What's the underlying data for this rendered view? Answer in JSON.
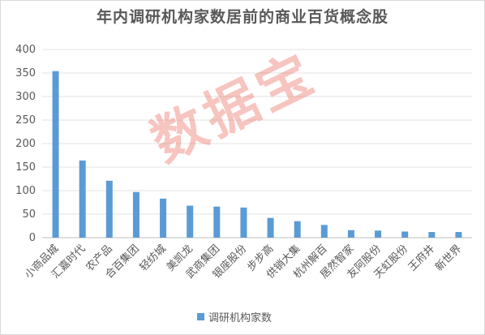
{
  "chart_data": {
    "type": "bar",
    "title": "年内调研机构家数居前的商业百货概念股",
    "categories": [
      "小商品城",
      "汇嘉时代",
      "农产品",
      "合百集团",
      "轻纺城",
      "美凯龙",
      "武商集团",
      "银座股份",
      "步步高",
      "供销大集",
      "杭州解百",
      "居然智家",
      "友阿股份",
      "天虹股份",
      "王府井",
      "新世界"
    ],
    "series": [
      {
        "name": "调研机构家数",
        "values": [
          354,
          164,
          121,
          97,
          83,
          68,
          66,
          64,
          42,
          35,
          27,
          16,
          15,
          13,
          12,
          12
        ]
      }
    ],
    "ylim": [
      0,
      400
    ],
    "yticks": [
      0,
      50,
      100,
      150,
      200,
      250,
      300,
      350,
      400
    ],
    "grid": true,
    "legend_position": "bottom",
    "bar_color": "#5b9bd5"
  },
  "watermark": "数据宝"
}
